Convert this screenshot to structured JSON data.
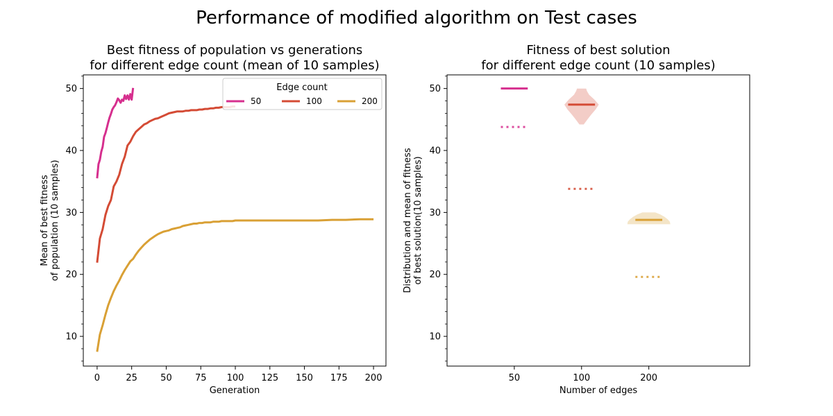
{
  "figure_title": "Performance of modified algorithm on Test cases",
  "colors": {
    "50": "#d62f8e",
    "100": "#d44b35",
    "200": "#d9a035"
  },
  "chart_data": [
    {
      "type": "line",
      "title_line1": "Best fitness of population vs generations",
      "title_line2": "for different edge count (mean of 10 samples)",
      "xlabel": "Generation",
      "ylabel_line1": "Mean of best fitness",
      "ylabel_line2": "of population (10 samples)",
      "xlim": [
        -10,
        209
      ],
      "ylim": [
        5.2,
        52.2
      ],
      "xticks": [
        0,
        25,
        50,
        75,
        100,
        125,
        150,
        175,
        200
      ],
      "yticks": [
        10,
        20,
        30,
        40,
        50
      ],
      "grid": false,
      "legend": {
        "title": "Edge count",
        "placement": "top-right"
      },
      "series": [
        {
          "name": "50",
          "color_key": "50",
          "x": [
            0,
            1,
            2,
            3,
            4,
            5,
            6,
            7,
            8,
            9,
            10,
            11,
            12,
            13,
            14,
            15,
            16,
            17,
            18,
            19,
            20,
            21,
            22,
            23,
            24,
            25,
            26
          ],
          "y": [
            35.5,
            37.8,
            38.5,
            39.8,
            40.6,
            42.2,
            42.8,
            43.6,
            44.5,
            45.3,
            45.9,
            46.6,
            47.0,
            47.3,
            47.8,
            48.4,
            48.1,
            47.7,
            48.2,
            48.0,
            48.9,
            48.3,
            48.9,
            48.2,
            49.1,
            48.2,
            50.1
          ]
        },
        {
          "name": "100",
          "color_key": "100",
          "x": [
            0,
            2,
            4,
            6,
            8,
            10,
            12,
            14,
            16,
            18,
            20,
            22,
            24,
            26,
            28,
            30,
            32,
            34,
            36,
            38,
            40,
            42,
            44,
            46,
            48,
            50,
            52,
            54,
            56,
            58,
            60,
            62,
            64,
            66,
            68,
            70,
            72,
            74,
            76,
            78,
            80,
            82,
            84,
            86,
            88,
            90,
            92,
            94,
            96,
            98,
            100
          ],
          "y": [
            21.9,
            25.8,
            27.3,
            29.6,
            31.0,
            32.0,
            34.2,
            35.0,
            36.1,
            37.8,
            39.0,
            40.8,
            41.4,
            42.3,
            43.0,
            43.4,
            43.8,
            44.2,
            44.4,
            44.7,
            44.9,
            45.1,
            45.2,
            45.4,
            45.6,
            45.8,
            46.0,
            46.1,
            46.2,
            46.3,
            46.3,
            46.3,
            46.4,
            46.4,
            46.5,
            46.5,
            46.5,
            46.6,
            46.6,
            46.7,
            46.7,
            46.8,
            46.8,
            46.9,
            46.9,
            47.0,
            47.0,
            47.0,
            47.0,
            47.1,
            47.1
          ]
        },
        {
          "name": "200",
          "color_key": "200",
          "x": [
            0,
            2,
            4,
            6,
            8,
            10,
            12,
            14,
            16,
            18,
            20,
            22,
            24,
            26,
            28,
            30,
            32,
            34,
            36,
            38,
            40,
            42,
            44,
            46,
            48,
            50,
            52,
            54,
            56,
            58,
            60,
            62,
            64,
            66,
            68,
            70,
            72,
            74,
            76,
            78,
            80,
            82,
            84,
            86,
            88,
            90,
            92,
            94,
            96,
            98,
            100,
            110,
            120,
            130,
            140,
            150,
            160,
            170,
            180,
            190,
            200
          ],
          "y": [
            7.5,
            10.3,
            11.8,
            13.5,
            15.0,
            16.2,
            17.3,
            18.2,
            19.0,
            19.9,
            20.7,
            21.4,
            22.1,
            22.5,
            23.2,
            23.8,
            24.3,
            24.8,
            25.2,
            25.6,
            25.9,
            26.2,
            26.5,
            26.7,
            26.9,
            27.0,
            27.1,
            27.3,
            27.4,
            27.5,
            27.6,
            27.8,
            27.9,
            28.0,
            28.1,
            28.2,
            28.2,
            28.3,
            28.3,
            28.4,
            28.4,
            28.4,
            28.5,
            28.5,
            28.5,
            28.6,
            28.6,
            28.6,
            28.6,
            28.6,
            28.7,
            28.7,
            28.7,
            28.7,
            28.7,
            28.7,
            28.7,
            28.8,
            28.8,
            28.9,
            28.9
          ]
        }
      ]
    },
    {
      "type": "violin",
      "title_line1": "Fitness of best solution",
      "title_line2": "for different edge count (10 samples)",
      "xlabel": "Number of edges",
      "ylabel_line1": "Distribution and mean of fitness",
      "ylabel_line2": "of best solution(10 samples)",
      "xlim": [
        0,
        4.5
      ],
      "ylim": [
        5.2,
        52.2
      ],
      "yticks": [
        10,
        20,
        30,
        40,
        50
      ],
      "categories": [
        "50",
        "100",
        "200"
      ],
      "grid": false,
      "groups": [
        {
          "category": "50",
          "color_key": "50",
          "best_fitness_mean": 50.0,
          "min": 50.0,
          "max": 50.0,
          "population_mean": 43.8,
          "violin_profile": []
        },
        {
          "category": "100",
          "color_key": "100",
          "best_fitness_mean": 47.4,
          "min": 44.2,
          "max": 50.0,
          "population_mean": 33.8,
          "violin_profile": [
            [
              44.2,
              0.08
            ],
            [
              45.0,
              0.22
            ],
            [
              45.8,
              0.36
            ],
            [
              46.6,
              0.52
            ],
            [
              47.4,
              0.64
            ],
            [
              48.2,
              0.48
            ],
            [
              49.0,
              0.28
            ],
            [
              49.6,
              0.2
            ],
            [
              50.0,
              0.17
            ]
          ]
        },
        {
          "category": "200",
          "color_key": "200",
          "best_fitness_mean": 28.8,
          "min": 28.1,
          "max": 30.0,
          "population_mean": 19.6,
          "violin_profile": [
            [
              28.1,
              0.8
            ],
            [
              28.5,
              0.78
            ],
            [
              28.9,
              0.7
            ],
            [
              29.3,
              0.58
            ],
            [
              29.7,
              0.42
            ],
            [
              30.0,
              0.24
            ]
          ]
        }
      ]
    }
  ]
}
